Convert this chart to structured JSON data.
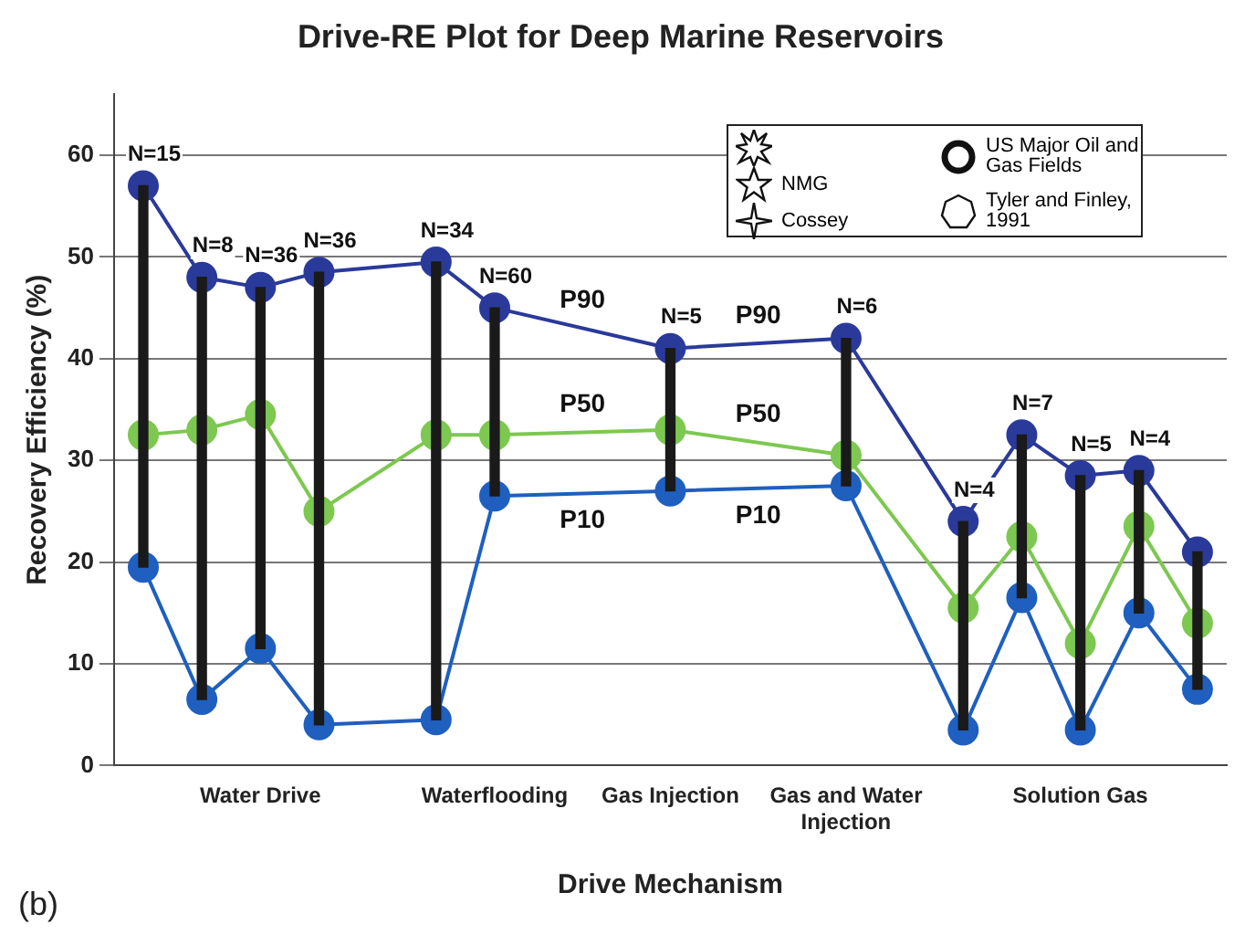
{
  "chart_data": {
    "type": "line",
    "title": "Drive-RE Plot for Deep Marine Reservoirs",
    "xlabel": "Drive Mechanism",
    "ylabel": "Recovery Efficiency (%)",
    "categories": [
      null,
      null,
      "Water Drive",
      null,
      null,
      null,
      "Waterflooding",
      null,
      null,
      "Gas Injection",
      null,
      null,
      "Gas and Water Injection",
      null,
      null,
      null,
      "Solution Gas",
      null,
      null
    ],
    "series": [
      {
        "type": "bar",
        "color": "#1a1a1a",
        "base": [
          19.5,
          6.5,
          11.5,
          4,
          null,
          4.5,
          26.5,
          null,
          null,
          27,
          null,
          null,
          27.5,
          null,
          3.5,
          16.5,
          3.5,
          15,
          7.5
        ],
        "values": [
          37.5,
          41.5,
          35.5,
          44.5,
          null,
          45,
          18.5,
          null,
          null,
          14,
          null,
          null,
          14.5,
          null,
          20.5,
          16,
          25,
          14,
          13.5
        ]
      },
      {
        "name": "P90",
        "color": "#2a3a9a",
        "marker": "circle",
        "values": [
          57,
          48,
          47,
          48.5,
          null,
          49.5,
          45,
          null,
          null,
          41,
          null,
          null,
          42,
          null,
          24,
          32.5,
          28.5,
          29,
          21
        ]
      },
      {
        "name": "P50",
        "color": "#7dc850",
        "marker": "circle",
        "values": [
          32.5,
          33,
          34.5,
          25,
          null,
          32.5,
          32.5,
          null,
          null,
          33,
          null,
          null,
          30.5,
          null,
          15.5,
          22.5,
          12,
          23.5,
          14
        ]
      },
      {
        "name": "P10",
        "color": "#1f5fbf",
        "marker": "circle",
        "values": [
          19.5,
          6.5,
          11.5,
          4,
          null,
          4.5,
          26.5,
          null,
          null,
          27,
          null,
          null,
          27.5,
          null,
          3.5,
          16.5,
          3.5,
          15,
          7.5
        ]
      }
    ],
    "ylim": [
      0,
      66
    ],
    "yticks": [
      0,
      10,
      20,
      30,
      40,
      50,
      60
    ],
    "grid": "y",
    "legend": false,
    "annotations": [
      "(b)",
      "NMG",
      "Cossey",
      "US Major Oil and Gas Fields",
      "Tyler and Finley, 1991",
      "N=15",
      "N=8",
      "N=36",
      "N=36",
      "N=34",
      "N=60",
      "N=5",
      "N=6",
      "N=4",
      "N=7",
      "N=5",
      "N=4"
    ]
  }
}
